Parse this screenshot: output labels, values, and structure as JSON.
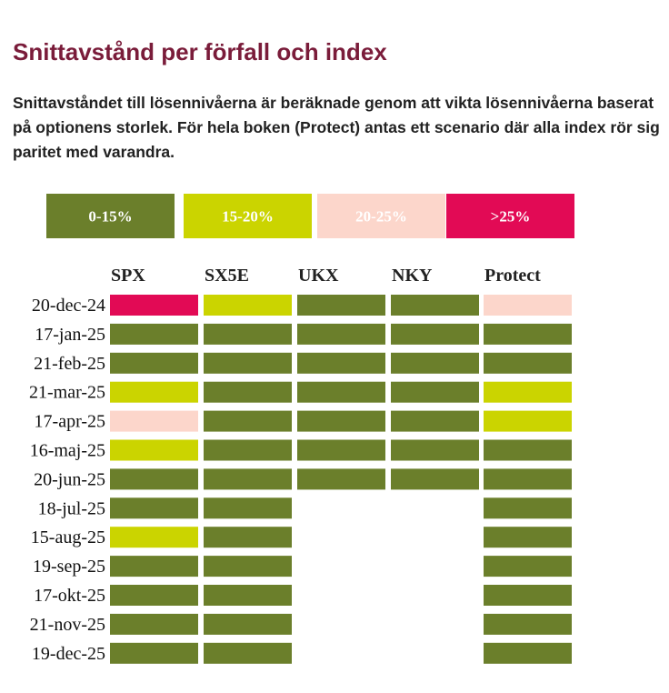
{
  "title": "Snittavstånd per förfall och index",
  "subtitle": "Snittavståndet till lösennivåerna är beräknade genom att vikta lösennivåerna baserat på optionens storlek. För hela boken (Protect) antas ett scenario där alla index rör sig paritet med varandra.",
  "chart_data": {
    "type": "heatmap",
    "legend": [
      {
        "label": "0-15%",
        "color": "#6b7f2b"
      },
      {
        "label": "15-20%",
        "color": "#cbd400"
      },
      {
        "label": "20-25%",
        "color": "#fcd6cb"
      },
      {
        "label": ">25%",
        "color": "#e20a55"
      }
    ],
    "columns": [
      "SPX",
      "SX5E",
      "UKX",
      "NKY",
      "Protect"
    ],
    "rows": [
      "20-dec-24",
      "17-jan-25",
      "21-feb-25",
      "21-mar-25",
      "17-apr-25",
      "16-maj-25",
      "20-jun-25",
      "18-jul-25",
      "15-aug-25",
      "19-sep-25",
      "17-okt-25",
      "21-nov-25",
      "19-dec-25"
    ],
    "cells": [
      [
        ">25%",
        "15-20%",
        "0-15%",
        "0-15%",
        "20-25%"
      ],
      [
        "0-15%",
        "0-15%",
        "0-15%",
        "0-15%",
        "0-15%"
      ],
      [
        "0-15%",
        "0-15%",
        "0-15%",
        "0-15%",
        "0-15%"
      ],
      [
        "15-20%",
        "0-15%",
        "0-15%",
        "0-15%",
        "15-20%"
      ],
      [
        "20-25%",
        "0-15%",
        "0-15%",
        "0-15%",
        "15-20%"
      ],
      [
        "15-20%",
        "0-15%",
        "0-15%",
        "0-15%",
        "0-15%"
      ],
      [
        "0-15%",
        "0-15%",
        "0-15%",
        "0-15%",
        "0-15%"
      ],
      [
        "0-15%",
        "0-15%",
        null,
        null,
        "0-15%"
      ],
      [
        "15-20%",
        "0-15%",
        null,
        null,
        "0-15%"
      ],
      [
        "0-15%",
        "0-15%",
        null,
        null,
        "0-15%"
      ],
      [
        "0-15%",
        "0-15%",
        null,
        null,
        "0-15%"
      ],
      [
        "0-15%",
        "0-15%",
        null,
        null,
        "0-15%"
      ],
      [
        "0-15%",
        "0-15%",
        null,
        null,
        "0-15%"
      ]
    ]
  }
}
